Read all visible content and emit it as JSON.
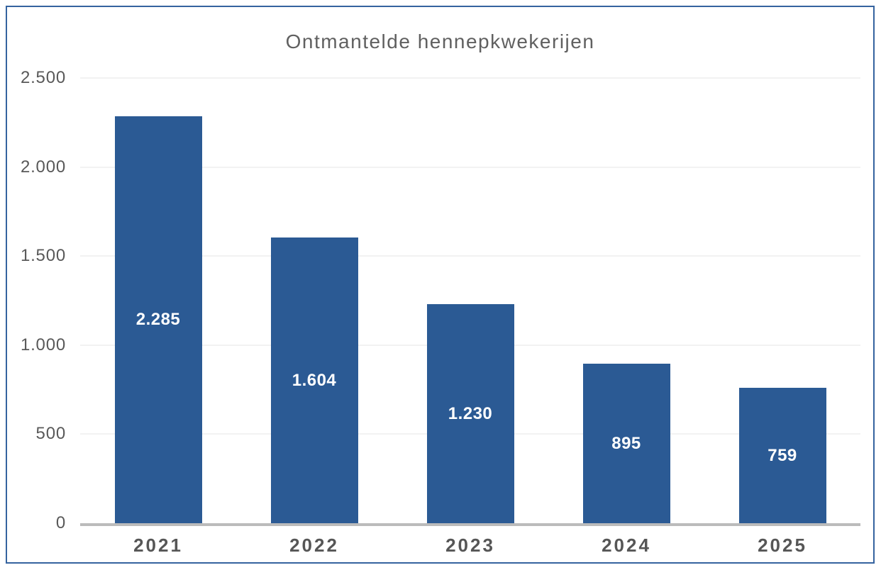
{
  "chart_data": {
    "type": "bar",
    "title": "Ontmantelde hennepkwekerijen",
    "categories": [
      "2021",
      "2022",
      "2023",
      "2024",
      "2025"
    ],
    "values": [
      2285,
      1604,
      1230,
      895,
      759
    ],
    "value_labels": [
      "2.285",
      "1.604",
      "1.230",
      "895",
      "759"
    ],
    "xlabel": "",
    "ylabel": "",
    "ylim": [
      0,
      2500
    ],
    "y_ticks": [
      0,
      500,
      1000,
      1500,
      2000,
      2500
    ],
    "y_tick_labels": [
      "0",
      "500",
      "1.000",
      "1.500",
      "2.000",
      "2.500"
    ],
    "grid": true,
    "legend": false,
    "colors": {
      "bar_fill": "#2b5a94",
      "frame_border": "#35639f",
      "title_text": "#606060",
      "axis_tick_text": "#595959",
      "x_label_text": "#565656",
      "gridline": "#f2f2f2",
      "baseline": "#bbbbbb",
      "value_label_text": "#ffffff",
      "background": "#ffffff"
    }
  }
}
